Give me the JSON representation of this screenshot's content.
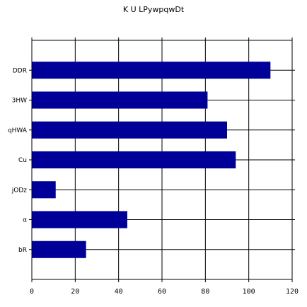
{
  "chart_data": {
    "type": "bar",
    "orientation": "horizontal",
    "title": "K U LPywpqwDt",
    "xlabel": "",
    "ylabel": "",
    "categories": [
      "DDR",
      "3HW",
      "qHWA",
      "Cu",
      "jODz",
      "α",
      "bR"
    ],
    "values": [
      110,
      81,
      90,
      94,
      11,
      44,
      25
    ],
    "xlim": [
      0,
      120
    ],
    "xticks": [
      0,
      20,
      40,
      60,
      80,
      100,
      120
    ],
    "grid": true,
    "bar_color": "#000099"
  }
}
